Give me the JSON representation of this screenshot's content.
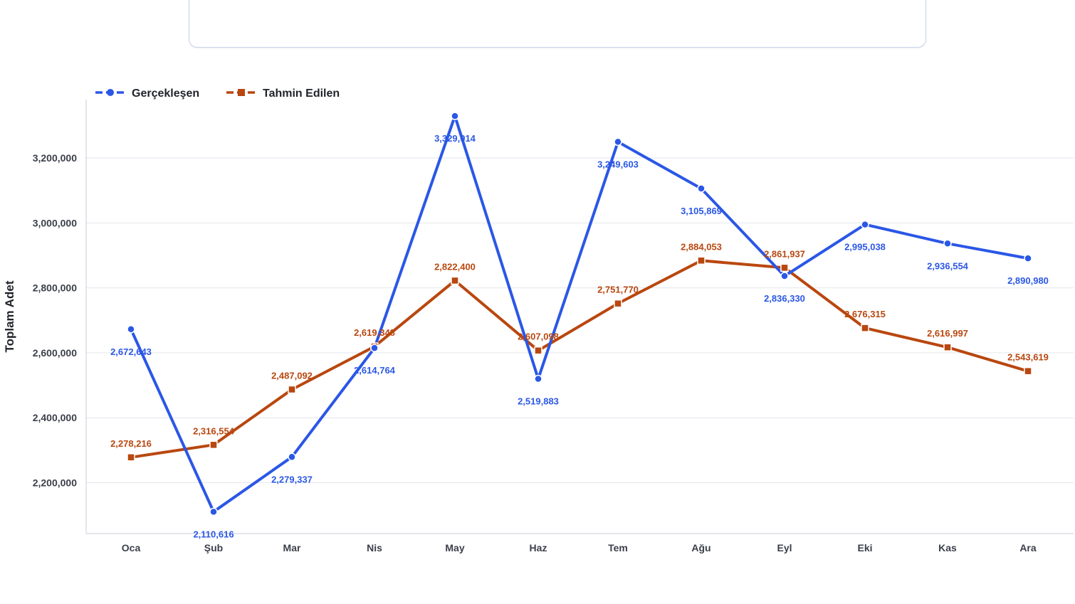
{
  "colors": {
    "actual": "#2b57e6",
    "forecast": "#b9470f",
    "grid": "#e3e6ec",
    "axis": "#c8ccd4"
  },
  "chart_data": {
    "type": "line",
    "title": "",
    "xlabel": "",
    "ylabel": "Toplam Adet",
    "categories": [
      "Oca",
      "Şub",
      "Mar",
      "Nis",
      "May",
      "Haz",
      "Tem",
      "Ağu",
      "Eyl",
      "Eki",
      "Kas",
      "Ara"
    ],
    "yticks": [
      2200000,
      2400000,
      2600000,
      2800000,
      3000000,
      3200000
    ],
    "ytick_labels": [
      "2,200,000",
      "2,400,000",
      "2,600,000",
      "2,800,000",
      "3,000,000",
      "3,200,000"
    ],
    "ylim": [
      2050000,
      3390000
    ],
    "grid": true,
    "legend_position": "top-left",
    "series": [
      {
        "name": "Gerçekleşen",
        "marker": "circle",
        "color": "#2b57e6",
        "values": [
          2672643,
          2110616,
          2279337,
          2614764,
          3329014,
          2519883,
          3249603,
          3105869,
          2836330,
          2995038,
          2936554,
          2890980
        ],
        "labels": [
          "2,672,643",
          "2,110,616",
          "2,279,337",
          "2,614,764",
          "3,329,014",
          "2,519,883",
          "3,249,603",
          "3,105,869",
          "2,836,330",
          "2,995,038",
          "2,936,554",
          "2,890,980"
        ]
      },
      {
        "name": "Tahmin Edilen",
        "marker": "square",
        "color": "#b9470f",
        "values": [
          2278216,
          2316554,
          2487092,
          2619348,
          2822400,
          2607098,
          2751770,
          2884053,
          2861937,
          2676315,
          2616997,
          2543619
        ],
        "labels": [
          "2,278,216",
          "2,316,554",
          "2,487,092",
          "2,619,348",
          "2,822,400",
          "2,607,098",
          "2,751,770",
          "2,884,053",
          "2,861,937",
          "2,676,315",
          "2,616,997",
          "2,543,619"
        ]
      }
    ]
  }
}
